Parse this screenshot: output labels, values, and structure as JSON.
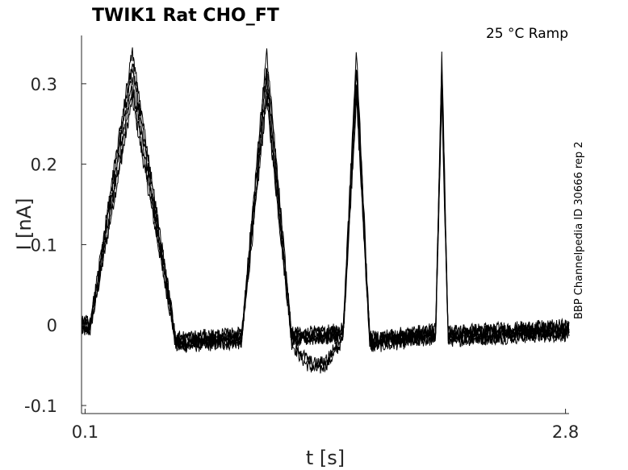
{
  "chart_data": {
    "type": "line",
    "title": "TWIK1  Rat  CHO_FT",
    "annotation": "25 °C  Ramp",
    "side_label": "BBP Channelpedia ID 30666 rep 2",
    "xlabel": "t [s]",
    "ylabel": "I [nA]",
    "xlim": [
      0.08,
      2.82
    ],
    "ylim": [
      -0.11,
      0.36
    ],
    "xticks": [
      0.1,
      2.8
    ],
    "xtick_labels": [
      "0.1",
      "2.8"
    ],
    "yticks": [
      -0.1,
      0,
      0.1,
      0.2,
      0.3
    ],
    "ytick_labels": [
      "-0.1",
      "0",
      "0.1",
      "0.2",
      "0.3"
    ],
    "grid": false,
    "line_color": "#000000",
    "n_traces": 6,
    "trace_shape": [
      [
        0.08,
        0.0
      ],
      [
        0.13,
        0.0
      ],
      [
        0.365,
        0.335
      ],
      [
        0.61,
        -0.02
      ],
      [
        0.98,
        -0.015
      ],
      [
        1.12,
        0.335
      ],
      [
        1.26,
        -0.015
      ],
      [
        1.55,
        -0.01
      ],
      [
        1.625,
        0.335
      ],
      [
        1.7,
        -0.02
      ],
      [
        2.07,
        -0.01
      ],
      [
        2.105,
        0.335
      ],
      [
        2.14,
        -0.012
      ],
      [
        2.82,
        -0.005
      ]
    ]
  }
}
